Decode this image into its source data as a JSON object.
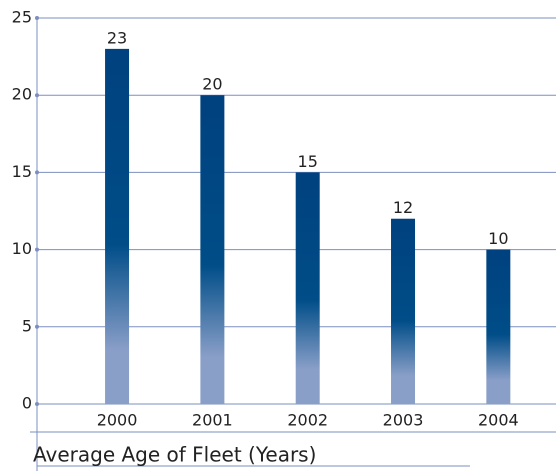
{
  "chart_data": {
    "type": "bar",
    "title": "Average Age of Fleet (Years)",
    "categories": [
      "2000",
      "2001",
      "2002",
      "2003",
      "2004"
    ],
    "values": [
      23,
      20,
      15,
      12,
      10
    ],
    "color": "#00417f",
    "ylim": [
      0,
      25
    ],
    "yticks": [
      0,
      5,
      10,
      15,
      20,
      25
    ],
    "grid": true
  }
}
